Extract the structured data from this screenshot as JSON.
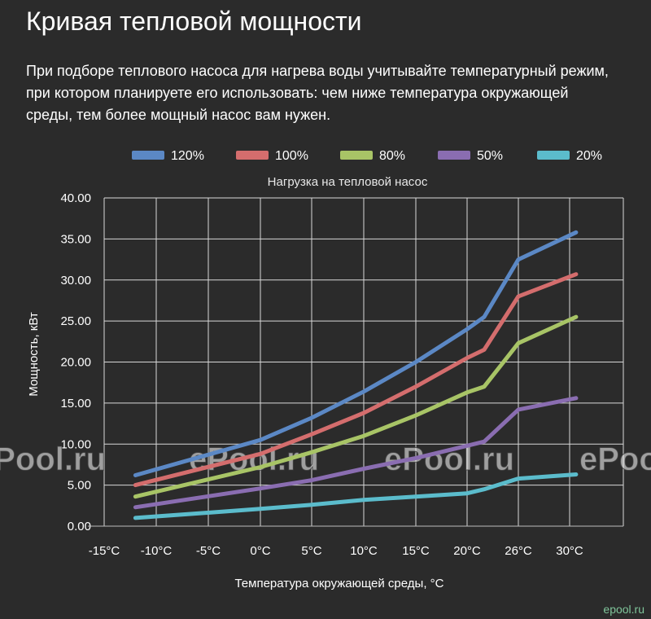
{
  "page": {
    "title": "Кривая тепловой мощности",
    "intro": "При подборе теплового насоса для нагрева воды учитывайте температурный режим, при котором планируете его использовать: чем ниже температура окружающей среды, тем более мощный насос вам нужен.",
    "watermark": "ePool.ru",
    "site_tag": "epool.ru"
  },
  "chart_data": {
    "type": "line",
    "title": "Нагрузка на тепловой насос",
    "xlabel": "Температура окружающей среды, °C",
    "ylabel": "Мощность, кВт",
    "x_ticks": [
      "-15°C",
      "-10°C",
      "-5°C",
      "0°C",
      "5°C",
      "10°C",
      "15°C",
      "20°C",
      "26°C",
      "30°C"
    ],
    "y_ticks": [
      "0.00",
      "5.00",
      "10.00",
      "15.00",
      "20.00",
      "25.00",
      "30.00",
      "35.00",
      "40.00"
    ],
    "ylim": [
      0,
      40
    ],
    "grid": true,
    "legend_position": "top",
    "series": [
      {
        "name": "120%",
        "color": "#5b88c5",
        "points": [
          [
            -12,
            6.2
          ],
          [
            0,
            10.5
          ],
          [
            5,
            13.2
          ],
          [
            10,
            16.4
          ],
          [
            15,
            20
          ],
          [
            20,
            24
          ],
          [
            22,
            25.5
          ],
          [
            26,
            32.5
          ],
          [
            30.5,
            35.8
          ]
        ]
      },
      {
        "name": "100%",
        "color": "#d46d6d",
        "points": [
          [
            -12,
            5
          ],
          [
            0,
            8.8
          ],
          [
            5,
            11.2
          ],
          [
            10,
            13.8
          ],
          [
            15,
            17
          ],
          [
            20,
            20.5
          ],
          [
            22,
            21.5
          ],
          [
            26,
            28
          ],
          [
            30.5,
            30.7
          ]
        ]
      },
      {
        "name": "80%",
        "color": "#a8c466",
        "points": [
          [
            -12,
            3.6
          ],
          [
            0,
            7.2
          ],
          [
            5,
            9
          ],
          [
            10,
            11
          ],
          [
            15,
            13.5
          ],
          [
            20,
            16.3
          ],
          [
            22,
            17
          ],
          [
            26,
            22.3
          ],
          [
            30.5,
            25.5
          ]
        ]
      },
      {
        "name": "50%",
        "color": "#8a6db1",
        "points": [
          [
            -12,
            2.3
          ],
          [
            0,
            4.6
          ],
          [
            5,
            5.6
          ],
          [
            10,
            7
          ],
          [
            15,
            8.3
          ],
          [
            20,
            9.8
          ],
          [
            22,
            10.3
          ],
          [
            26,
            14.2
          ],
          [
            30.5,
            15.6
          ]
        ]
      },
      {
        "name": "20%",
        "color": "#5bbccc",
        "points": [
          [
            -12,
            1
          ],
          [
            0,
            2.1
          ],
          [
            5,
            2.6
          ],
          [
            10,
            3.2
          ],
          [
            15,
            3.6
          ],
          [
            20,
            4
          ],
          [
            22,
            4.5
          ],
          [
            26,
            5.8
          ],
          [
            30.5,
            6.3
          ]
        ]
      }
    ]
  }
}
